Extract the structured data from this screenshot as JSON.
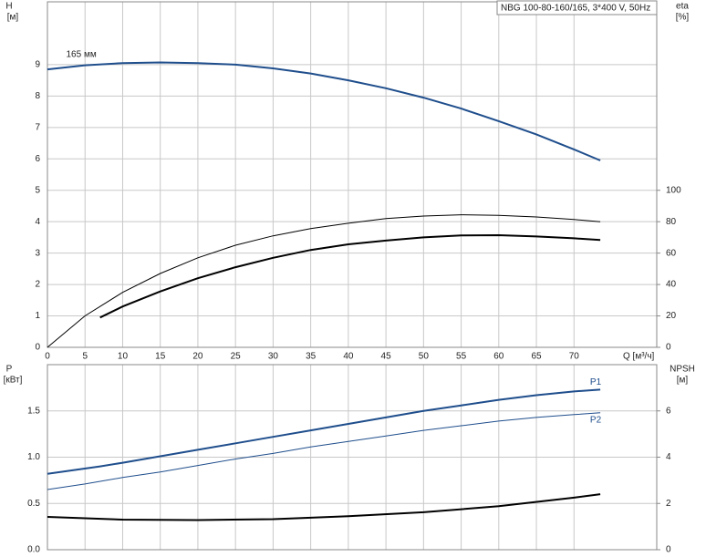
{
  "chart_data": [
    {
      "type": "line",
      "title": "NBG 100-80-160/165, 3*400 V, 50Hz",
      "xlabel": "Q [м³/ч]",
      "ylabel": "H",
      "yunit": "[м]",
      "y2label": "eta",
      "y2unit": "[%]",
      "xlim": [
        0,
        81
      ],
      "xticks": [
        0,
        5,
        10,
        15,
        20,
        25,
        30,
        35,
        40,
        45,
        50,
        55,
        60,
        65,
        70
      ],
      "ylim": [
        0,
        11
      ],
      "yticks": [
        0,
        1,
        2,
        3,
        4,
        5,
        6,
        7,
        8,
        9
      ],
      "y2lim": [
        0,
        220
      ],
      "y2ticks": [
        0,
        20,
        40,
        60,
        80,
        100
      ],
      "grid": true,
      "annotations": [
        {
          "text": "165 мм",
          "x": 4.5,
          "y": 9.2
        }
      ],
      "series": [
        {
          "color": "#1f4e8c",
          "width": 2,
          "x": [
            0,
            5,
            10,
            15,
            20,
            25,
            30,
            35,
            40,
            45,
            50,
            55,
            60,
            65,
            70,
            73.5
          ],
          "values": [
            8.85,
            8.98,
            9.05,
            9.07,
            9.05,
            9.0,
            8.88,
            8.72,
            8.5,
            8.25,
            7.95,
            7.6,
            7.2,
            6.78,
            6.3,
            5.95
          ]
        },
        {
          "color": "#000000",
          "width": 1,
          "axis": "y2",
          "x": [
            0,
            5,
            10,
            15,
            20,
            25,
            30,
            35,
            40,
            45,
            50,
            55,
            60,
            65,
            70,
            73.5
          ],
          "values": [
            0,
            20,
            35,
            47,
            57,
            65,
            71,
            75.6,
            79,
            82,
            83.6,
            84.4,
            84,
            83,
            81.4,
            80
          ]
        },
        {
          "color": "#000000",
          "width": 2,
          "axis": "y2",
          "x": [
            7,
            10,
            15,
            20,
            25,
            30,
            35,
            40,
            45,
            50,
            55,
            60,
            65,
            70,
            73.5
          ],
          "values": [
            19,
            26,
            35.6,
            44,
            51,
            57,
            62,
            65.6,
            68,
            70,
            71.2,
            71.4,
            70.6,
            69.4,
            68.4
          ]
        }
      ]
    },
    {
      "type": "line",
      "ylabel": "P",
      "yunit": "[кВт]",
      "y2label": "NPSH",
      "y2unit": "[м]",
      "ylim": [
        0,
        2.0
      ],
      "yticks": [
        {
          "value": 0,
          "label": "0.0"
        },
        0.5,
        {
          "value": 1,
          "label": "1.0"
        },
        1.5
      ],
      "y2lim": [
        0,
        8
      ],
      "y2ticks": [
        0,
        2,
        4,
        6
      ],
      "grid": true,
      "series": [
        {
          "name": "P1",
          "color": "#1f4e8c",
          "width": 2,
          "x": [
            0,
            7,
            10,
            15,
            20,
            25,
            30,
            35,
            40,
            45,
            50,
            55,
            60,
            65,
            70,
            73.5
          ],
          "values": [
            0.82,
            0.9,
            0.94,
            1.01,
            1.08,
            1.15,
            1.22,
            1.29,
            1.36,
            1.43,
            1.5,
            1.56,
            1.62,
            1.67,
            1.71,
            1.73
          ]
        },
        {
          "name": "P2",
          "color": "#1f4e8c",
          "width": 1,
          "x": [
            0,
            5,
            10,
            15,
            20,
            25,
            30,
            35,
            40,
            45,
            50,
            55,
            60,
            65,
            70,
            73.5
          ],
          "values": [
            0.65,
            0.71,
            0.78,
            0.84,
            0.91,
            0.98,
            1.04,
            1.11,
            1.17,
            1.23,
            1.29,
            1.34,
            1.39,
            1.43,
            1.46,
            1.48
          ]
        },
        {
          "color": "#000000",
          "width": 2,
          "axis": "y2",
          "x": [
            0,
            10,
            20,
            30,
            40,
            50,
            60,
            70,
            73.5
          ],
          "values": [
            1.42,
            1.3,
            1.28,
            1.32,
            1.45,
            1.62,
            1.88,
            2.25,
            2.4
          ]
        }
      ]
    }
  ]
}
